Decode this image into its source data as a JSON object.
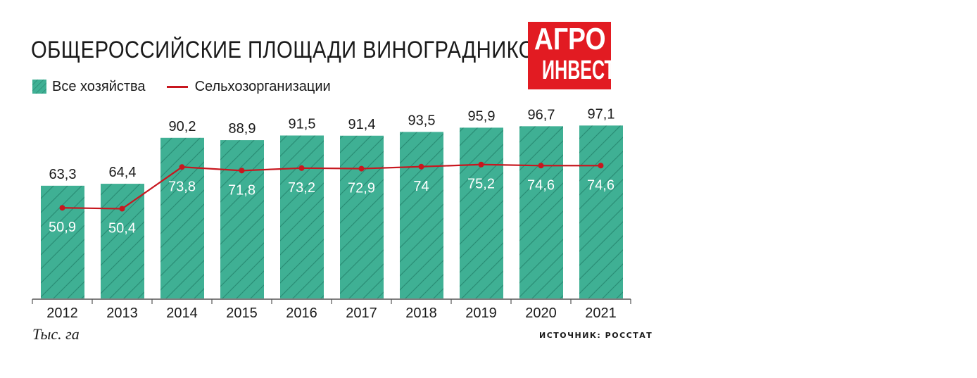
{
  "title": "ОБЩЕРОССИЙСКИЕ ПЛОЩАДИ ВИНОГРАДНИКОВ",
  "logo": {
    "line1": "АГРО",
    "line2": "ИНВЕСТОР"
  },
  "unit_label": "Тыс. га",
  "source": "ИСТОЧНИК: РОССТАТ",
  "colors": {
    "bar": "#3fb094",
    "bar_hatch": "#1f7a63",
    "line": "#c8171f",
    "logo_bg": "#e21b22"
  },
  "chart_data": {
    "type": "bar",
    "categories": [
      "2012",
      "2013",
      "2014",
      "2015",
      "2016",
      "2017",
      "2018",
      "2019",
      "2020",
      "2021"
    ],
    "series": [
      {
        "name": "Все хозяйства",
        "type": "bar",
        "values": [
          63.3,
          64.4,
          90.2,
          88.9,
          91.5,
          91.4,
          93.5,
          95.9,
          96.7,
          97.1
        ],
        "labels": [
          "63,3",
          "64,4",
          "90,2",
          "88,9",
          "91,5",
          "91,4",
          "93,5",
          "95,9",
          "96,7",
          "97,1"
        ]
      },
      {
        "name": "Сельхозорганизации",
        "type": "line",
        "values": [
          50.9,
          50.4,
          73.8,
          71.8,
          73.2,
          72.9,
          74,
          75.2,
          74.6,
          74.6
        ],
        "labels": [
          "50,9",
          "50,4",
          "73,8",
          "71,8",
          "73,2",
          "72,9",
          "74",
          "75,2",
          "74,6",
          "74,6"
        ]
      }
    ],
    "ylim": [
      0,
      100
    ],
    "grid": false,
    "legend": "top-left"
  }
}
